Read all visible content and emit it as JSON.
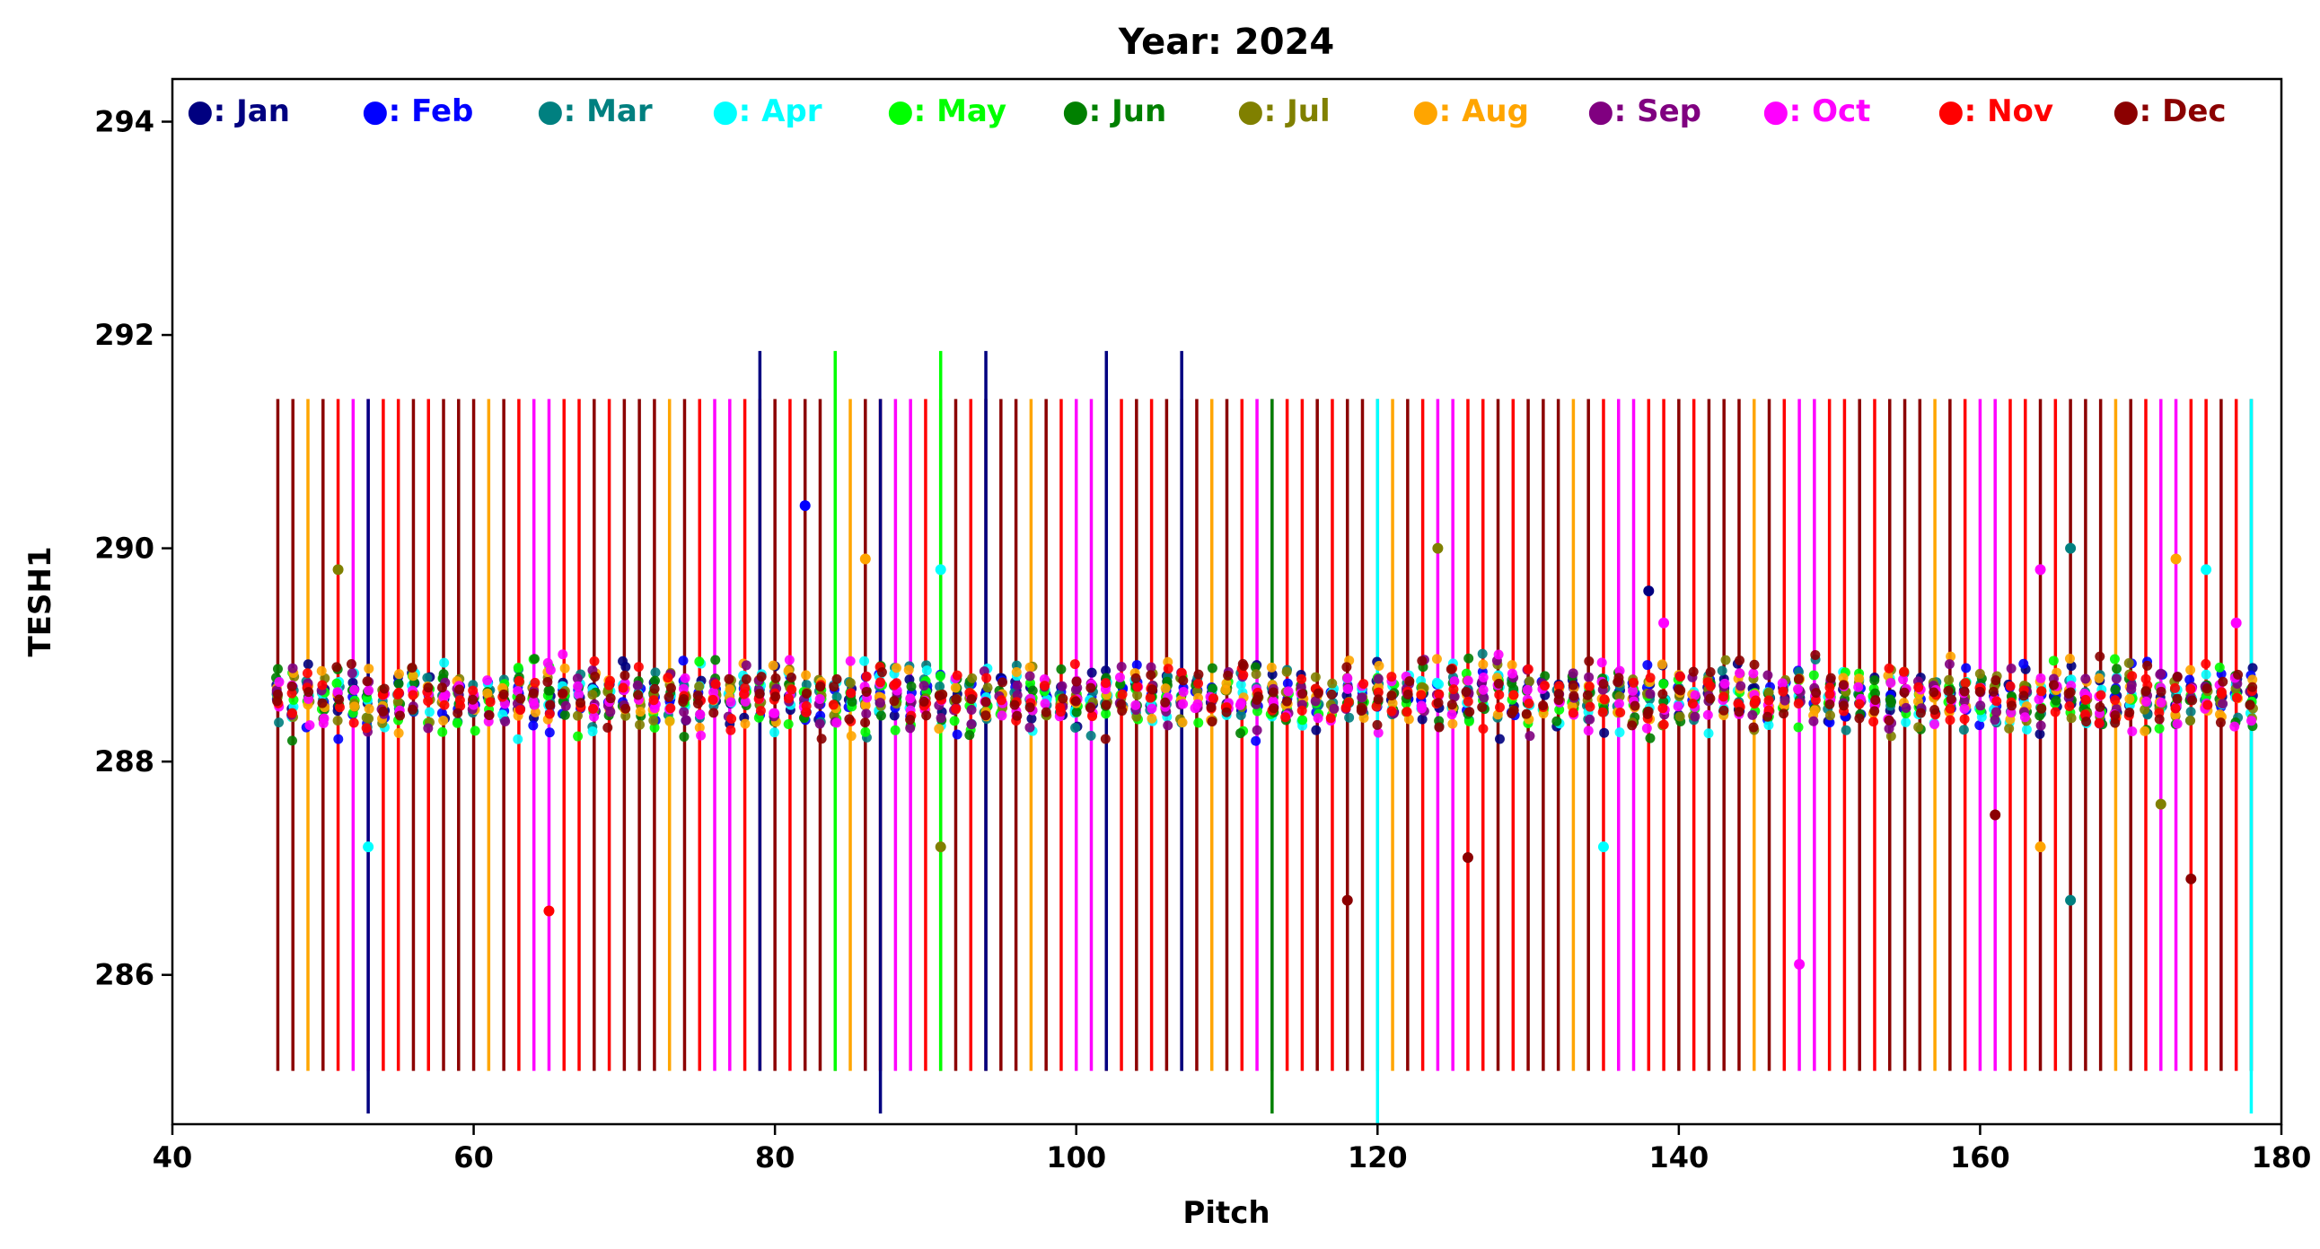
{
  "chart_data": {
    "type": "scatter",
    "title": "Year: 2024",
    "xlabel": "Pitch",
    "ylabel": "TESH1",
    "xlim": [
      40,
      180
    ],
    "ylim": [
      284.6,
      294.4
    ],
    "xticks": [
      40,
      60,
      80,
      100,
      120,
      140,
      160,
      180
    ],
    "yticks": [
      286,
      288,
      290,
      292,
      294
    ],
    "legend_position": "top",
    "grid": false,
    "typical_range": {
      "mean": 288.6,
      "marker_spread": 0.35,
      "vline_lo": 285.1,
      "vline_hi": 291.4
    },
    "x_span": [
      47,
      178
    ],
    "series": [
      {
        "name": "Jan",
        "label": "●: Jan",
        "color": "#000080"
      },
      {
        "name": "Feb",
        "label": "●: Feb",
        "color": "#0000ff"
      },
      {
        "name": "Mar",
        "label": "●: Mar",
        "color": "#008080"
      },
      {
        "name": "Apr",
        "label": "●: Apr",
        "color": "#00ffff"
      },
      {
        "name": "May",
        "label": "●: May",
        "color": "#00ff00"
      },
      {
        "name": "Jun",
        "label": "●: Jun",
        "color": "#008000"
      },
      {
        "name": "Jul",
        "label": "●: Jul",
        "color": "#808000"
      },
      {
        "name": "Aug",
        "label": "●: Aug",
        "color": "#ffa500"
      },
      {
        "name": "Sep",
        "label": "●: Sep",
        "color": "#800080"
      },
      {
        "name": "Oct",
        "label": "●: Oct",
        "color": "#ff00ff"
      },
      {
        "name": "Nov",
        "label": "●: Nov",
        "color": "#ff0000"
      },
      {
        "name": "Dec",
        "label": "●: Dec",
        "color": "#8b0000"
      }
    ],
    "extended_lines": [
      {
        "x": 79,
        "lo": 285.1,
        "hi": 291.85,
        "series": "Jan"
      },
      {
        "x": 84,
        "lo": 285.1,
        "hi": 291.85,
        "series": "May"
      },
      {
        "x": 91,
        "lo": 285.1,
        "hi": 291.85,
        "series": "May"
      },
      {
        "x": 94,
        "lo": 285.1,
        "hi": 291.85,
        "series": "Jan"
      },
      {
        "x": 102,
        "lo": 285.1,
        "hi": 291.85,
        "series": "Jan"
      },
      {
        "x": 107,
        "lo": 285.1,
        "hi": 291.85,
        "series": "Jan"
      },
      {
        "x": 53,
        "lo": 284.7,
        "hi": 291.4,
        "series": "Jan"
      },
      {
        "x": 87,
        "lo": 284.7,
        "hi": 291.4,
        "series": "Jan"
      },
      {
        "x": 113,
        "lo": 284.7,
        "hi": 291.4,
        "series": "Jun"
      },
      {
        "x": 120,
        "lo": 284.6,
        "hi": 291.4,
        "series": "Apr"
      },
      {
        "x": 178,
        "lo": 284.7,
        "hi": 291.4,
        "series": "Apr"
      }
    ],
    "outliers": [
      {
        "x": 51,
        "y": 289.8,
        "series": "Jul"
      },
      {
        "x": 53,
        "y": 287.2,
        "series": "Apr"
      },
      {
        "x": 65,
        "y": 286.6,
        "series": "Nov"
      },
      {
        "x": 82,
        "y": 290.4,
        "series": "Feb"
      },
      {
        "x": 86,
        "y": 289.9,
        "series": "Aug"
      },
      {
        "x": 91,
        "y": 289.8,
        "series": "Apr"
      },
      {
        "x": 91,
        "y": 287.2,
        "series": "Jul"
      },
      {
        "x": 118,
        "y": 286.7,
        "series": "Dec"
      },
      {
        "x": 124,
        "y": 290.0,
        "series": "Jul"
      },
      {
        "x": 126,
        "y": 287.1,
        "series": "Dec"
      },
      {
        "x": 135,
        "y": 287.2,
        "series": "Apr"
      },
      {
        "x": 138,
        "y": 289.6,
        "series": "Jan"
      },
      {
        "x": 139,
        "y": 289.3,
        "series": "Oct"
      },
      {
        "x": 148,
        "y": 286.1,
        "series": "Oct"
      },
      {
        "x": 161,
        "y": 287.5,
        "series": "Dec"
      },
      {
        "x": 164,
        "y": 289.8,
        "series": "Oct"
      },
      {
        "x": 164,
        "y": 287.2,
        "series": "Aug"
      },
      {
        "x": 166,
        "y": 290.0,
        "series": "Mar"
      },
      {
        "x": 166,
        "y": 286.7,
        "series": "Mar"
      },
      {
        "x": 172,
        "y": 287.6,
        "series": "Jul"
      },
      {
        "x": 173,
        "y": 289.9,
        "series": "Aug"
      },
      {
        "x": 174,
        "y": 286.9,
        "series": "Dec"
      },
      {
        "x": 175,
        "y": 289.8,
        "series": "Apr"
      },
      {
        "x": 177,
        "y": 289.3,
        "series": "Oct"
      }
    ]
  }
}
